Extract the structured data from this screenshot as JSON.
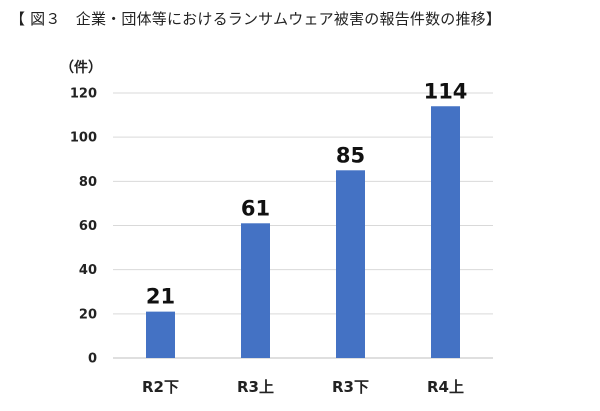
{
  "figure": {
    "title": "【 図３　企業・団体等におけるランサムウェア被害の報告件数の推移】"
  },
  "chart_data": {
    "type": "bar",
    "title": "【 図３　企業・団体等におけるランサムウェア被害の報告件数の推移】",
    "y_unit_label": "（件）",
    "categories": [
      "R2下",
      "R3上",
      "R3下",
      "R4上"
    ],
    "values": [
      21,
      61,
      85,
      114
    ],
    "data_labels": [
      "21",
      "61",
      "85",
      "114"
    ],
    "ylim": [
      0,
      120
    ],
    "y_ticks": [
      0,
      20,
      40,
      60,
      80,
      100,
      120
    ],
    "y_tick_labels": [
      "0",
      "20",
      "40",
      "60",
      "80",
      "100",
      "120"
    ],
    "grid": true,
    "legend": "none",
    "bar_color": "#4472C4",
    "grid_color": "#d9d9d9"
  }
}
